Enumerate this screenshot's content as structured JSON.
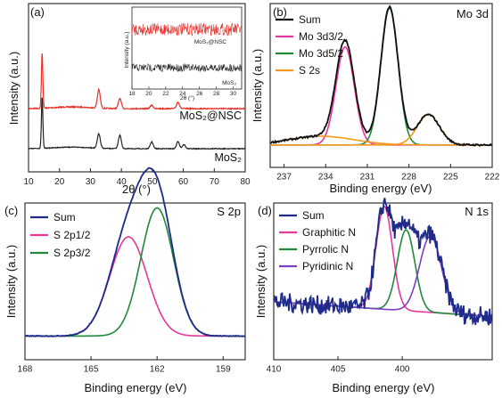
{
  "chart_data": [
    {
      "panel": "(a)",
      "type": "line",
      "xlabel": "2θ (°)",
      "ylabel": "Intensity (a.u.)",
      "xlim": [
        10,
        80
      ],
      "x_ticks": [
        "10",
        "20",
        "30",
        "40",
        "50",
        "60",
        "70",
        "80"
      ],
      "colors": {
        "MoS2@NSC": "#e8302a",
        "MoS2": "#222222"
      },
      "series": [
        {
          "name": "MoS2@NSC",
          "label": "MoS₂@NSC",
          "peaks": [
            [
              14.4,
              1.0
            ],
            [
              32.7,
              0.33
            ],
            [
              39.5,
              0.18
            ],
            [
              49.8,
              0.06
            ],
            [
              58.3,
              0.12
            ]
          ]
        },
        {
          "name": "MoS2",
          "label": "MoS₂",
          "peaks": [
            [
              14.4,
              1.0
            ],
            [
              32.7,
              0.28
            ],
            [
              39.5,
              0.26
            ],
            [
              49.8,
              0.13
            ],
            [
              58.3,
              0.14
            ],
            [
              60.2,
              0.08
            ]
          ]
        }
      ],
      "inset": {
        "xlabel": "2θ (°)",
        "ylabel": "Intensity (a.u.)",
        "xlim": [
          18,
          31
        ],
        "x_ticks": [
          "18",
          "20",
          "22",
          "24",
          "26",
          "28",
          "30"
        ],
        "series": [
          {
            "label": "MoS₂@NSC"
          },
          {
            "label": "MoS₂"
          }
        ]
      }
    },
    {
      "panel": "(b)",
      "title": "Mo 3d",
      "type": "line",
      "xlabel": "Binding energy (eV)",
      "ylabel": "Intensity (a.u.)",
      "xlim": [
        238,
        222
      ],
      "x_ticks": [
        "237",
        "234",
        "231",
        "228",
        "225",
        "222"
      ],
      "legend": [
        "Sum",
        "Mo 3d3/2",
        "Mo 3d5/2",
        "S 2s"
      ],
      "colors": [
        "#111111",
        "#e6379a",
        "#1f8a3a",
        "#f39a1e"
      ],
      "components": [
        {
          "name": "Mo 3d3/2",
          "center": 232.6,
          "fwhm": 1.55,
          "height": 0.68
        },
        {
          "name": "Mo 3d5/2",
          "center": 229.4,
          "fwhm": 1.45,
          "height": 0.95
        },
        {
          "name": "S 2s",
          "center": 226.6,
          "fwhm": 1.9,
          "height": 0.21
        },
        {
          "name": "S 2s",
          "center": 234.3,
          "fwhm": 5.5,
          "height": 0.06
        }
      ],
      "baseline": 0.02
    },
    {
      "panel": "(c)",
      "title": "S 2p",
      "type": "line",
      "xlabel": "Binding energy (eV)",
      "ylabel": "Intensity (a.u.)",
      "xlim": [
        168,
        158
      ],
      "x_ticks": [
        "168",
        "165",
        "162",
        "159"
      ],
      "legend": [
        "Sum",
        "S 2p1/2",
        "S 2p3/2"
      ],
      "colors": [
        "#1f2a8a",
        "#e6379a",
        "#1f8a3a"
      ],
      "components": [
        {
          "name": "S 2p1/2",
          "center": 163.3,
          "fwhm": 2.0,
          "height": 0.48
        },
        {
          "name": "S 2p3/2",
          "center": 162.0,
          "fwhm": 1.75,
          "height": 0.62
        }
      ],
      "baseline": 0.02
    },
    {
      "panel": "(d)",
      "title": "N 1s",
      "type": "line",
      "xlabel": "Binding energy (eV)",
      "ylabel": "Intensity (a.u.)",
      "xlim": [
        410,
        393
      ],
      "x_ticks": [
        "410",
        "405",
        "400"
      ],
      "legend": [
        "Sum",
        "Graphitic N",
        "Pyrrolic N",
        "Pyridinic N"
      ],
      "colors": [
        "#1f2a8a",
        "#e6379a",
        "#1f8a3a",
        "#7b3fc4"
      ],
      "components": [
        {
          "name": "Graphitic N",
          "center": 401.4,
          "fwhm": 1.5,
          "height": 0.7
        },
        {
          "name": "Pyrrolic N",
          "center": 399.7,
          "fwhm": 1.6,
          "height": 0.55
        },
        {
          "name": "Pyridinic N",
          "center": 397.8,
          "fwhm": 2.0,
          "height": 0.52
        }
      ],
      "baseline_start": 0.2,
      "baseline_end": 0.1
    }
  ],
  "labels": {
    "a": {
      "panel": "(a)",
      "sample_nsc": "MoS₂@NSC",
      "sample_mos2": "MoS₂"
    },
    "b": {
      "panel": "(b)",
      "title": "Mo 3d"
    },
    "c": {
      "panel": "(c)",
      "title": "S 2p"
    },
    "d": {
      "panel": "(d)",
      "title": "N 1s"
    }
  }
}
